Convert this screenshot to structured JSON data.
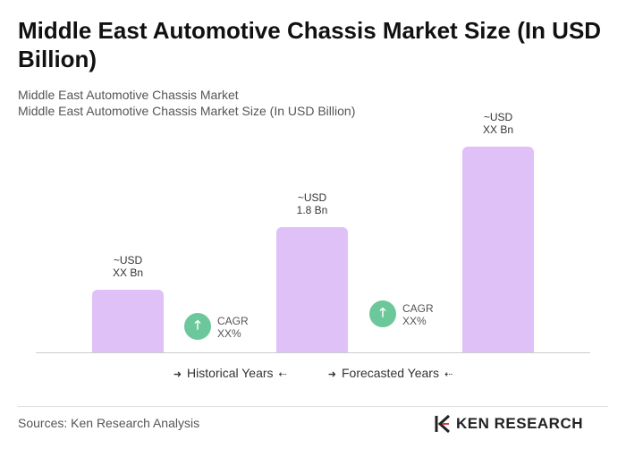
{
  "chart_data": {
    "type": "bar",
    "title": "Middle East Automotive Chassis Market Size (In USD Billion)",
    "subtitle": "Middle East Automotive Chassis Market",
    "subtitle2": "Middle East Automotive Chassis Market Size (In USD Billion)",
    "values": [
      0.9,
      1.8,
      2.95
    ],
    "value_labels": [
      "~USD\nXX Bn",
      "~USD\n1.8 Bn",
      "~USD\nXX Bn"
    ],
    "color": "#dfc1f7",
    "annotations": [
      "CAGR\nXX%",
      "CAGR\nXX%"
    ],
    "legend": [
      "Historical Years",
      "Forecasted Years"
    ],
    "source": "Sources: Ken Research Analysis",
    "brand": "KEN RESEARCH"
  }
}
